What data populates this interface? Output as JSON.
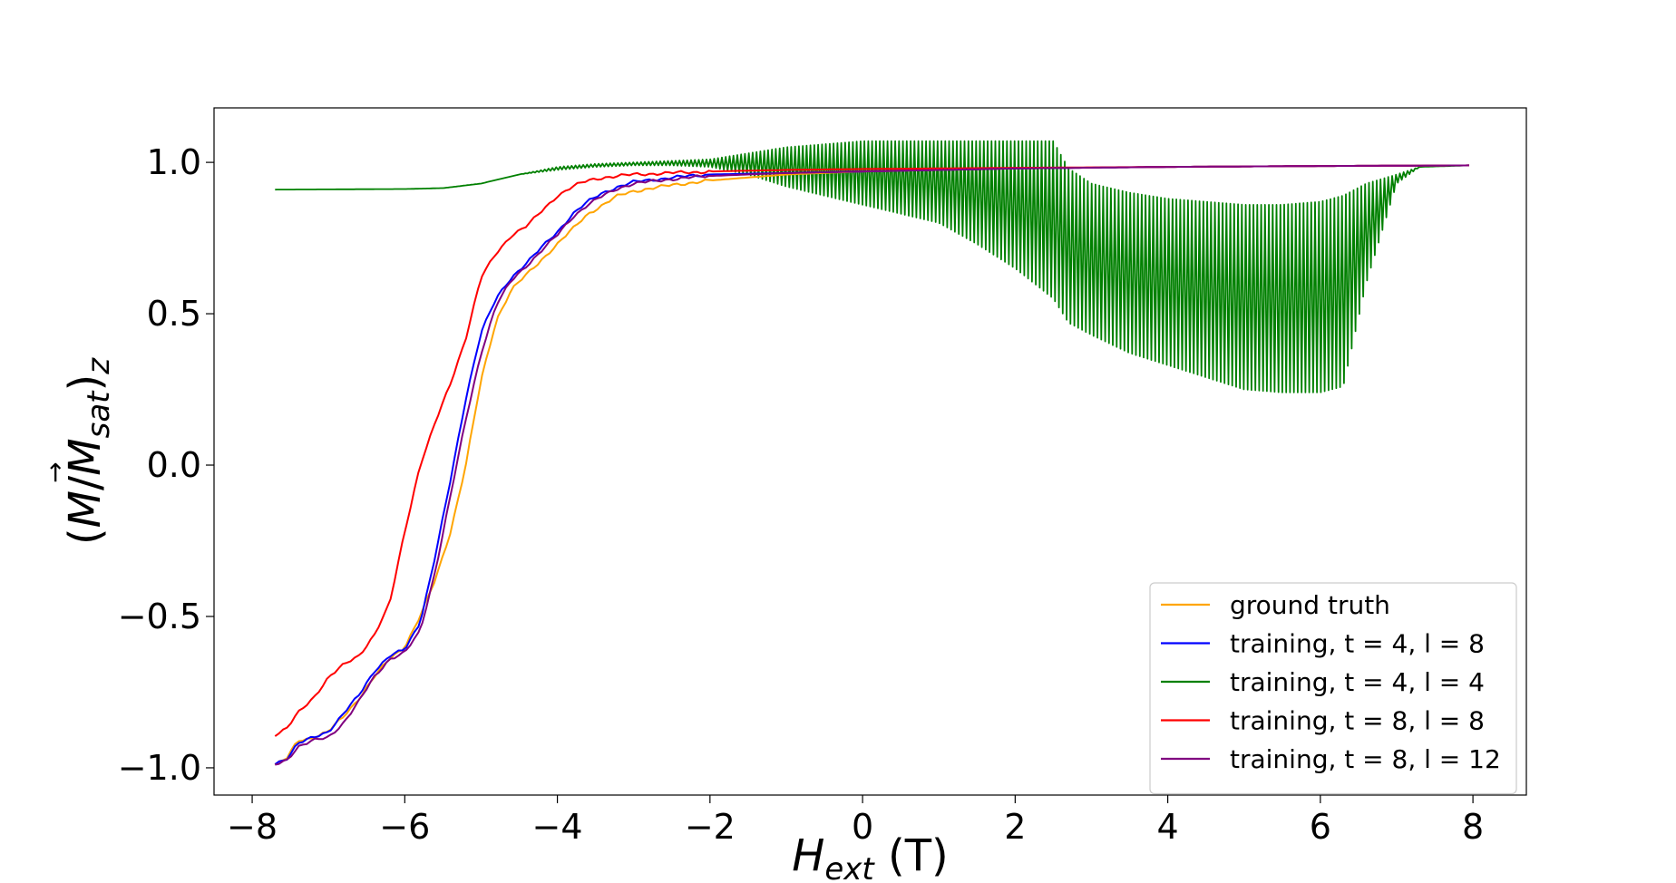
{
  "chart_data": {
    "type": "line",
    "title": "",
    "xlabel": "H_ext (T)",
    "ylabel": "(M/M_sat)_z",
    "xlim": [
      -8.5,
      8.7
    ],
    "ylim": [
      -1.09,
      1.18
    ],
    "xticks": [
      -8,
      -6,
      -4,
      -2,
      0,
      2,
      4,
      6,
      8
    ],
    "xtick_labels": [
      "−8",
      "−6",
      "−4",
      "−2",
      "0",
      "2",
      "4",
      "6",
      "8"
    ],
    "yticks": [
      1.0,
      0.5,
      0.0,
      -0.5,
      -1.0
    ],
    "ytick_labels": [
      "1.0",
      "0.5",
      "0.0",
      "−0.5",
      "−1.0"
    ],
    "grid": false,
    "legend_position": "lower-right",
    "series": [
      {
        "name": "ground truth",
        "color": "#ffa500",
        "x": [
          -7.7,
          -7.55,
          -7.4,
          -7.2,
          -7.0,
          -6.8,
          -6.6,
          -6.4,
          -6.2,
          -6.0,
          -5.8,
          -5.6,
          -5.4,
          -5.2,
          -5.0,
          -4.8,
          -4.6,
          -4.4,
          -4.2,
          -4.0,
          -3.8,
          -3.6,
          -3.4,
          -3.2,
          -3.0,
          -2.5,
          -2.0,
          -1.0,
          0.0,
          1.0,
          2.0,
          4.0,
          6.0,
          7.95
        ],
        "y": [
          -0.99,
          -0.97,
          -0.91,
          -0.9,
          -0.88,
          -0.83,
          -0.77,
          -0.7,
          -0.64,
          -0.6,
          -0.5,
          -0.38,
          -0.22,
          0.0,
          0.28,
          0.48,
          0.58,
          0.63,
          0.68,
          0.73,
          0.78,
          0.83,
          0.86,
          0.89,
          0.905,
          0.925,
          0.94,
          0.96,
          0.97,
          0.975,
          0.98,
          0.985,
          0.988,
          0.99
        ]
      },
      {
        "name": "training, t = 4, l = 8",
        "color": "#0000ff",
        "x": [
          -7.7,
          -7.55,
          -7.4,
          -7.2,
          -7.0,
          -6.8,
          -6.6,
          -6.4,
          -6.2,
          -6.0,
          -5.8,
          -5.6,
          -5.4,
          -5.2,
          -5.0,
          -4.8,
          -4.6,
          -4.4,
          -4.2,
          -4.0,
          -3.8,
          -3.6,
          -3.4,
          -3.2,
          -3.0,
          -2.5,
          -2.0,
          -1.0,
          0.0,
          1.0,
          2.0,
          4.0,
          6.0,
          7.95
        ],
        "y": [
          -0.985,
          -0.97,
          -0.92,
          -0.9,
          -0.88,
          -0.82,
          -0.76,
          -0.68,
          -0.63,
          -0.61,
          -0.52,
          -0.3,
          -0.05,
          0.22,
          0.44,
          0.55,
          0.62,
          0.67,
          0.72,
          0.77,
          0.83,
          0.87,
          0.9,
          0.92,
          0.935,
          0.95,
          0.96,
          0.965,
          0.97,
          0.975,
          0.98,
          0.985,
          0.988,
          0.99
        ]
      },
      {
        "name": "training, t = 4, l = 4",
        "color": "#008000",
        "x": [
          -7.7,
          -6.0,
          -5.5,
          -5.0,
          -4.5,
          -4.0,
          -3.5,
          -3.0,
          -2.5,
          -2.0,
          -1.5,
          -1.0,
          -0.5,
          0.0,
          0.5,
          1.0,
          1.5,
          2.0,
          2.5,
          2.7,
          3.0,
          3.5,
          4.0,
          4.5,
          5.0,
          5.5,
          6.0,
          6.3,
          6.6,
          7.0,
          7.3,
          7.95
        ],
        "y_upper": [
          0.91,
          0.912,
          0.915,
          0.93,
          0.96,
          0.985,
          0.995,
          1.0,
          1.005,
          1.01,
          1.03,
          1.05,
          1.06,
          1.07,
          1.07,
          1.07,
          1.07,
          1.07,
          1.07,
          0.98,
          0.93,
          0.9,
          0.88,
          0.87,
          0.86,
          0.86,
          0.87,
          0.89,
          0.93,
          0.96,
          0.985,
          0.99
        ],
        "y_lower": [
          0.91,
          0.912,
          0.915,
          0.93,
          0.96,
          0.975,
          0.985,
          0.99,
          0.99,
          0.985,
          0.96,
          0.92,
          0.89,
          0.86,
          0.83,
          0.8,
          0.73,
          0.65,
          0.55,
          0.47,
          0.43,
          0.37,
          0.33,
          0.29,
          0.25,
          0.24,
          0.24,
          0.26,
          0.6,
          0.93,
          0.985,
          0.99
        ]
      },
      {
        "name": "training, t = 8, l = 8",
        "color": "#ff0000",
        "x": [
          -7.7,
          -7.55,
          -7.4,
          -7.2,
          -7.0,
          -6.8,
          -6.6,
          -6.4,
          -6.2,
          -6.0,
          -5.8,
          -5.6,
          -5.4,
          -5.2,
          -5.0,
          -4.8,
          -4.6,
          -4.4,
          -4.2,
          -4.0,
          -3.8,
          -3.6,
          -3.4,
          -3.2,
          -3.0,
          -2.5,
          -2.0,
          -1.0,
          0.0,
          2.0,
          4.0,
          6.0,
          7.95
        ],
        "y": [
          -0.89,
          -0.87,
          -0.82,
          -0.77,
          -0.7,
          -0.66,
          -0.63,
          -0.56,
          -0.46,
          -0.22,
          0.0,
          0.14,
          0.27,
          0.42,
          0.62,
          0.7,
          0.76,
          0.79,
          0.84,
          0.89,
          0.92,
          0.94,
          0.95,
          0.955,
          0.96,
          0.965,
          0.97,
          0.975,
          0.978,
          0.982,
          0.985,
          0.988,
          0.99
        ]
      },
      {
        "name": "training, t = 8, l = 12",
        "color": "#800080",
        "x": [
          -7.7,
          -7.55,
          -7.4,
          -7.2,
          -7.0,
          -6.8,
          -6.6,
          -6.4,
          -6.2,
          -6.0,
          -5.8,
          -5.6,
          -5.4,
          -5.2,
          -5.0,
          -4.8,
          -4.6,
          -4.4,
          -4.2,
          -4.0,
          -3.8,
          -3.6,
          -3.4,
          -3.2,
          -3.0,
          -2.5,
          -2.0,
          -1.0,
          0.0,
          1.0,
          2.0,
          4.0,
          6.0,
          7.95
        ],
        "y": [
          -0.99,
          -0.975,
          -0.93,
          -0.91,
          -0.9,
          -0.85,
          -0.78,
          -0.7,
          -0.64,
          -0.62,
          -0.55,
          -0.35,
          -0.1,
          0.15,
          0.37,
          0.53,
          0.61,
          0.66,
          0.71,
          0.76,
          0.82,
          0.86,
          0.89,
          0.915,
          0.93,
          0.945,
          0.955,
          0.965,
          0.97,
          0.975,
          0.98,
          0.985,
          0.988,
          0.99
        ]
      }
    ]
  }
}
